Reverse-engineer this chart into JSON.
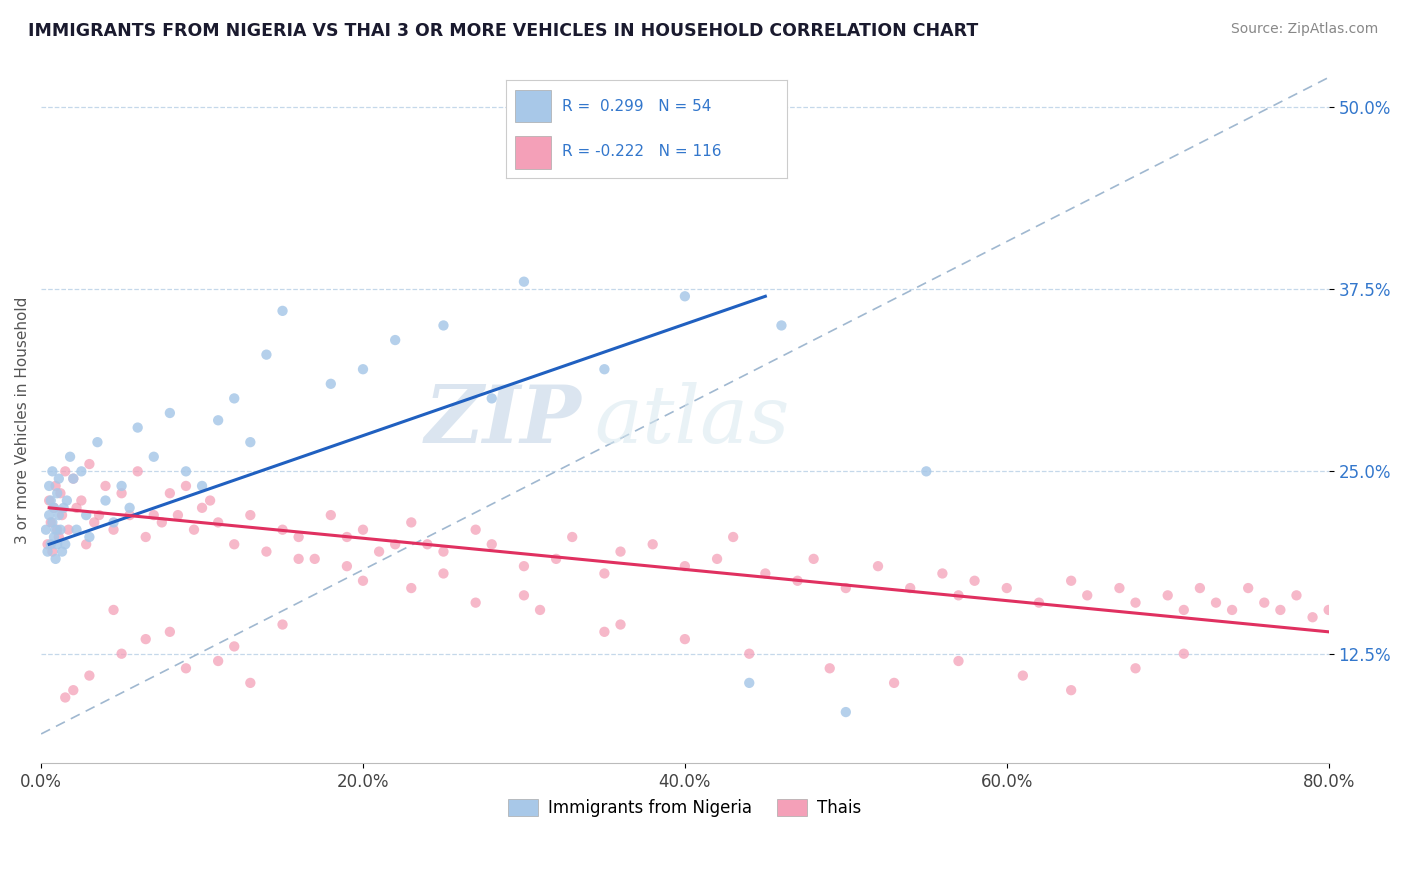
{
  "title": "IMMIGRANTS FROM NIGERIA VS THAI 3 OR MORE VEHICLES IN HOUSEHOLD CORRELATION CHART",
  "source": "Source: ZipAtlas.com",
  "ylabel": "3 or more Vehicles in Household",
  "xlim": [
    0.0,
    80.0
  ],
  "ylim": [
    5.0,
    52.0
  ],
  "xticks": [
    0.0,
    20.0,
    40.0,
    60.0,
    80.0
  ],
  "yticks": [
    12.5,
    25.0,
    37.5,
    50.0
  ],
  "xtick_labels": [
    "0.0%",
    "20.0%",
    "40.0%",
    "60.0%",
    "80.0%"
  ],
  "ytick_labels": [
    "12.5%",
    "25.0%",
    "37.5%",
    "50.0%"
  ],
  "nigeria_color": "#a8c8e8",
  "thai_color": "#f4a0b8",
  "nigeria_line_color": "#2060c0",
  "thai_line_color": "#e8406080",
  "dashed_line_color": "#a0b8d0",
  "watermark_zip": "ZIP",
  "watermark_atlas": "atlas",
  "nigeria_line_x": [
    0.5,
    45.0
  ],
  "nigeria_line_y": [
    20.0,
    37.0
  ],
  "thai_line_x": [
    0.5,
    80.0
  ],
  "thai_line_y": [
    22.5,
    14.0
  ],
  "dash_line_x": [
    0.0,
    80.0
  ],
  "dash_line_y": [
    7.0,
    52.0
  ],
  "nigeria_x": [
    0.3,
    0.4,
    0.5,
    0.5,
    0.6,
    0.6,
    0.7,
    0.7,
    0.8,
    0.8,
    0.9,
    0.9,
    1.0,
    1.0,
    1.1,
    1.1,
    1.2,
    1.3,
    1.4,
    1.5,
    1.6,
    1.8,
    2.0,
    2.2,
    2.5,
    2.8,
    3.0,
    3.5,
    4.0,
    4.5,
    5.0,
    5.5,
    6.0,
    7.0,
    8.0,
    9.0,
    10.0,
    11.0,
    12.0,
    13.0,
    14.0,
    15.0,
    18.0,
    20.0,
    22.0,
    25.0,
    28.0,
    30.0,
    35.0,
    40.0,
    44.0,
    46.0,
    50.0,
    55.0
  ],
  "nigeria_y": [
    21.0,
    19.5,
    22.0,
    24.0,
    20.0,
    23.0,
    21.5,
    25.0,
    20.5,
    22.5,
    21.0,
    19.0,
    23.5,
    20.0,
    22.0,
    24.5,
    21.0,
    19.5,
    22.5,
    20.0,
    23.0,
    26.0,
    24.5,
    21.0,
    25.0,
    22.0,
    20.5,
    27.0,
    23.0,
    21.5,
    24.0,
    22.5,
    28.0,
    26.0,
    29.0,
    25.0,
    24.0,
    28.5,
    30.0,
    27.0,
    33.0,
    36.0,
    31.0,
    32.0,
    34.0,
    35.0,
    30.0,
    38.0,
    32.0,
    37.0,
    10.5,
    35.0,
    8.5,
    25.0
  ],
  "thai_x": [
    0.4,
    0.5,
    0.6,
    0.7,
    0.8,
    0.9,
    1.0,
    1.1,
    1.2,
    1.3,
    1.5,
    1.7,
    2.0,
    2.2,
    2.5,
    2.8,
    3.0,
    3.3,
    3.6,
    4.0,
    4.5,
    5.0,
    5.5,
    6.0,
    6.5,
    7.0,
    7.5,
    8.0,
    8.5,
    9.0,
    9.5,
    10.0,
    10.5,
    11.0,
    12.0,
    13.0,
    14.0,
    15.0,
    16.0,
    17.0,
    18.0,
    19.0,
    20.0,
    21.0,
    22.0,
    23.0,
    24.0,
    25.0,
    27.0,
    28.0,
    30.0,
    32.0,
    33.0,
    35.0,
    36.0,
    38.0,
    40.0,
    42.0,
    43.0,
    45.0,
    47.0,
    48.0,
    50.0,
    52.0,
    54.0,
    56.0,
    57.0,
    58.0,
    60.0,
    62.0,
    64.0,
    65.0,
    67.0,
    68.0,
    70.0,
    71.0,
    72.0,
    73.0,
    74.0,
    75.0,
    76.0,
    77.0,
    78.0,
    79.0,
    80.0,
    25.0,
    30.0,
    35.0,
    20.0,
    15.0,
    12.0,
    8.0,
    5.0,
    3.0,
    2.0,
    1.5,
    4.5,
    6.5,
    9.0,
    11.0,
    13.0,
    16.0,
    19.0,
    23.0,
    27.0,
    31.0,
    36.0,
    40.0,
    44.0,
    49.0,
    53.0,
    57.0,
    61.0,
    64.0,
    68.0,
    71.0
  ],
  "thai_y": [
    20.0,
    23.0,
    21.5,
    19.5,
    22.5,
    24.0,
    21.0,
    20.5,
    23.5,
    22.0,
    25.0,
    21.0,
    24.5,
    22.5,
    23.0,
    20.0,
    25.5,
    21.5,
    22.0,
    24.0,
    21.0,
    23.5,
    22.0,
    25.0,
    20.5,
    22.0,
    21.5,
    23.5,
    22.0,
    24.0,
    21.0,
    22.5,
    23.0,
    21.5,
    20.0,
    22.0,
    19.5,
    21.0,
    20.5,
    19.0,
    22.0,
    20.5,
    21.0,
    19.5,
    20.0,
    21.5,
    20.0,
    19.5,
    21.0,
    20.0,
    18.5,
    19.0,
    20.5,
    18.0,
    19.5,
    20.0,
    18.5,
    19.0,
    20.5,
    18.0,
    17.5,
    19.0,
    17.0,
    18.5,
    17.0,
    18.0,
    16.5,
    17.5,
    17.0,
    16.0,
    17.5,
    16.5,
    17.0,
    16.0,
    16.5,
    15.5,
    17.0,
    16.0,
    15.5,
    17.0,
    16.0,
    15.5,
    16.5,
    15.0,
    15.5,
    18.0,
    16.5,
    14.0,
    17.5,
    14.5,
    13.0,
    14.0,
    12.5,
    11.0,
    10.0,
    9.5,
    15.5,
    13.5,
    11.5,
    12.0,
    10.5,
    19.0,
    18.5,
    17.0,
    16.0,
    15.5,
    14.5,
    13.5,
    12.5,
    11.5,
    10.5,
    12.0,
    11.0,
    10.0,
    11.5,
    12.5
  ]
}
